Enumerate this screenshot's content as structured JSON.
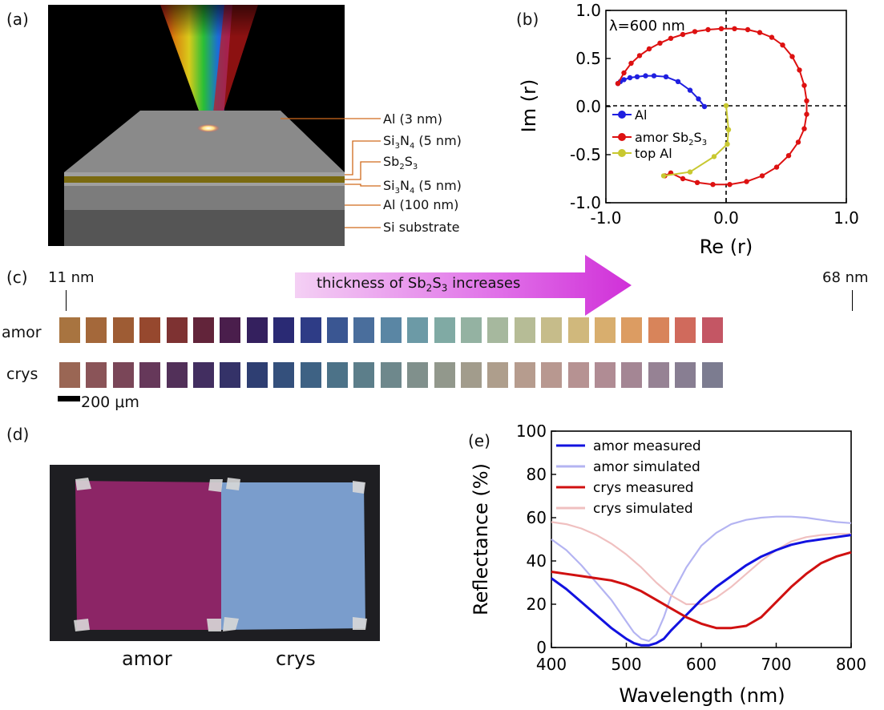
{
  "panels": {
    "a": "(a)",
    "b": "(b)",
    "c": "(c)",
    "d": "(d)",
    "e": "(e)"
  },
  "panel_a": {
    "layer_labels": [
      "Al (3 nm)",
      "Si3N4 (5 nm)",
      "Sb2S3",
      "Si3N4 (5 nm)",
      "Al (100 nm)",
      "Si substrate"
    ],
    "colors": {
      "background": "#000000",
      "top_al": "#8a8a8a",
      "si3n4": "#a0a0a0",
      "sb2s3": "#7a6a10",
      "al_bottom": "#7c7c7c",
      "substrate": "#555555"
    }
  },
  "chart_data": [
    {
      "type": "line",
      "id": "b",
      "title": "λ=600 nm",
      "xlabel": "Re (r)",
      "ylabel": "Im (r)",
      "xlim": [
        -1.0,
        1.0
      ],
      "ylim": [
        -1.0,
        1.0
      ],
      "xticks": [
        "-1.0",
        "0.0",
        "1.0"
      ],
      "yticks": [
        "1.0",
        "0.5",
        "0.0",
        "-0.5",
        "-1.0"
      ],
      "legend": "center-left",
      "series": [
        {
          "name": "Al",
          "color": "#1f1fe0",
          "points": [
            [
              -0.18,
              0.0
            ],
            [
              -0.23,
              0.08
            ],
            [
              -0.3,
              0.17
            ],
            [
              -0.4,
              0.26
            ],
            [
              -0.5,
              0.31
            ],
            [
              -0.6,
              0.32
            ],
            [
              -0.67,
              0.32
            ],
            [
              -0.74,
              0.31
            ],
            [
              -0.8,
              0.3
            ],
            [
              -0.85,
              0.28
            ],
            [
              -0.88,
              0.26
            ],
            [
              -0.9,
              0.24
            ]
          ]
        },
        {
          "name": "amor Sb2S3",
          "color": "#dd1111",
          "points": [
            [
              -0.9,
              0.24
            ],
            [
              -0.85,
              0.35
            ],
            [
              -0.79,
              0.45
            ],
            [
              -0.72,
              0.53
            ],
            [
              -0.64,
              0.6
            ],
            [
              -0.55,
              0.66
            ],
            [
              -0.46,
              0.71
            ],
            [
              -0.36,
              0.75
            ],
            [
              -0.26,
              0.78
            ],
            [
              -0.15,
              0.8
            ],
            [
              -0.04,
              0.81
            ],
            [
              0.07,
              0.81
            ],
            [
              0.18,
              0.8
            ],
            [
              0.28,
              0.77
            ],
            [
              0.38,
              0.72
            ],
            [
              0.47,
              0.64
            ],
            [
              0.55,
              0.52
            ],
            [
              0.61,
              0.38
            ],
            [
              0.65,
              0.22
            ],
            [
              0.67,
              0.06
            ],
            [
              0.67,
              -0.08
            ],
            [
              0.65,
              -0.23
            ],
            [
              0.6,
              -0.37
            ],
            [
              0.52,
              -0.51
            ],
            [
              0.42,
              -0.63
            ],
            [
              0.3,
              -0.72
            ],
            [
              0.17,
              -0.78
            ],
            [
              0.03,
              -0.81
            ],
            [
              -0.11,
              -0.81
            ],
            [
              -0.24,
              -0.79
            ],
            [
              -0.36,
              -0.75
            ],
            [
              -0.46,
              -0.69
            ],
            [
              -0.51,
              -0.72
            ]
          ]
        },
        {
          "name": "top Al",
          "color": "#c8c830",
          "points": [
            [
              0.0,
              0.01
            ],
            [
              0.02,
              -0.24
            ],
            [
              0.01,
              -0.39
            ],
            [
              -0.1,
              -0.52
            ],
            [
              -0.3,
              -0.68
            ],
            [
              -0.52,
              -0.72
            ]
          ]
        }
      ]
    },
    {
      "type": "line",
      "id": "e",
      "xlabel": "Wavelength (nm)",
      "ylabel": "Reflectance (%)",
      "xlim": [
        400,
        800
      ],
      "ylim": [
        0,
        100
      ],
      "xticks": [
        "400",
        "500",
        "600",
        "700",
        "800"
      ],
      "yticks": [
        "0",
        "20",
        "40",
        "60",
        "80",
        "100"
      ],
      "legend": "top-left",
      "series": [
        {
          "name": "amor measured",
          "color": "#1212e0",
          "x": [
            400,
            420,
            440,
            460,
            480,
            500,
            510,
            520,
            530,
            540,
            550,
            560,
            580,
            600,
            620,
            640,
            660,
            680,
            700,
            720,
            740,
            760,
            780,
            800
          ],
          "y": [
            32,
            27,
            21,
            15,
            9,
            4,
            2,
            1,
            1,
            2,
            4,
            8,
            15,
            22,
            28,
            33,
            38,
            42,
            45,
            47.5,
            49,
            50,
            51,
            52
          ]
        },
        {
          "name": "amor simulated",
          "color": "#b4b4f2",
          "x": [
            400,
            420,
            440,
            460,
            480,
            500,
            510,
            520,
            530,
            540,
            550,
            560,
            580,
            600,
            620,
            640,
            660,
            680,
            700,
            720,
            740,
            760,
            780,
            800
          ],
          "y": [
            50,
            45,
            38,
            30,
            22,
            12,
            7,
            4,
            3,
            6,
            14,
            24,
            37,
            47,
            53,
            57,
            59,
            60,
            60.5,
            60.5,
            60,
            59,
            58,
            57.5
          ]
        },
        {
          "name": "crys measured",
          "color": "#d01010",
          "x": [
            400,
            420,
            440,
            460,
            480,
            500,
            520,
            540,
            560,
            580,
            600,
            620,
            640,
            660,
            680,
            700,
            720,
            740,
            760,
            780,
            800
          ],
          "y": [
            35,
            34,
            33,
            32,
            31,
            29,
            26,
            22,
            18,
            14,
            11,
            9,
            9,
            10,
            14,
            21,
            28,
            34,
            39,
            42,
            44
          ]
        },
        {
          "name": "crys simulated",
          "color": "#f0c0c0",
          "x": [
            400,
            420,
            440,
            460,
            480,
            500,
            520,
            540,
            560,
            580,
            600,
            620,
            640,
            660,
            680,
            700,
            720,
            740,
            760,
            780,
            800
          ],
          "y": [
            58,
            57,
            55,
            52,
            48,
            43,
            37,
            30,
            24,
            20,
            20,
            23,
            28,
            34,
            40,
            45,
            49,
            51,
            52,
            52.5,
            52.5
          ]
        }
      ]
    }
  ],
  "panel_c": {
    "start_label": "11 nm",
    "end_label": "68 nm",
    "arrow_text": "thickness of Sb2S3 increases",
    "row_labels": {
      "amor": "amor",
      "crys": "crys"
    },
    "scale_bar": "200 μm",
    "amor_colors": [
      "#a87440",
      "#a4683a",
      "#9e5c34",
      "#96482e",
      "#7e3232",
      "#62243a",
      "#4a1e4c",
      "#34205e",
      "#2a2a74",
      "#2e3c86",
      "#3a5692",
      "#4a6e9c",
      "#5a86a4",
      "#6c9aa6",
      "#80aaa4",
      "#94b2a2",
      "#a6b89e",
      "#b6bc96",
      "#c6bc8a",
      "#d0b87c",
      "#d8ae6e",
      "#dc9c62",
      "#d8845a",
      "#d06a5c",
      "#c45664"
    ],
    "crys_colors": [
      "#9a6654",
      "#8a5458",
      "#7a4658",
      "#66385a",
      "#523059",
      "#422e60",
      "#343268",
      "#2e3e72",
      "#34507c",
      "#3e6284",
      "#4c7288",
      "#5c7e8a",
      "#6e888c",
      "#80908c",
      "#92988c",
      "#a29c8c",
      "#ae9e8c",
      "#b69c8e",
      "#b89890",
      "#b69292",
      "#b08c94",
      "#a48694",
      "#968294",
      "#887e92",
      "#7c7c90"
    ]
  },
  "panel_d": {
    "labels": {
      "amor": "amor",
      "crys": "crys"
    },
    "colors": {
      "background": "#1e1e22",
      "amor": "#8c2566",
      "crys": "#7a9dcc",
      "tape": "#d8d8d8"
    }
  }
}
